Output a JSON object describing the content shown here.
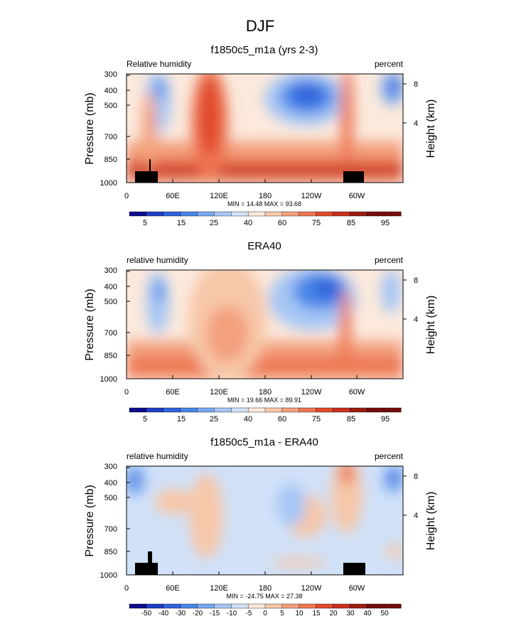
{
  "figure_title": "DJF",
  "chart_data": [
    {
      "type": "heatmap",
      "title": "f1850c5_m1a (yrs 2-3)",
      "left_label": "Relative humidity",
      "right_label": "percent",
      "ylabel": "Pressure (mb)",
      "y2label": "Height (km)",
      "pressure_ticks": [
        "300",
        "400",
        "500",
        "700",
        "850",
        "1000"
      ],
      "height_ticks": [
        "8",
        "4"
      ],
      "lon_ticks": [
        "0",
        "60E",
        "120E",
        "180",
        "120W",
        "60W"
      ],
      "stats": "MIN =  14.48   MAX =  93.68",
      "colorbar_labels": [
        "5",
        "15",
        "25",
        "40",
        "60",
        "75",
        "85",
        "95"
      ],
      "topography": true
    },
    {
      "type": "heatmap",
      "title": "ERA40",
      "left_label": "relative humidity",
      "right_label": "percent",
      "ylabel": "Pressure (mb)",
      "y2label": "Height (km)",
      "pressure_ticks": [
        "300",
        "400",
        "500",
        "700",
        "850",
        "1000"
      ],
      "height_ticks": [
        "8",
        "4"
      ],
      "lon_ticks": [
        "0",
        "60E",
        "120E",
        "180",
        "120W",
        "60W"
      ],
      "stats": "MIN =  19.66   MAX =  89.91",
      "colorbar_labels": [
        "5",
        "15",
        "25",
        "40",
        "60",
        "75",
        "85",
        "95"
      ],
      "topography": false
    },
    {
      "type": "heatmap",
      "title": "f1850c5_m1a - ERA40",
      "left_label": "relative humidity",
      "right_label": "percent",
      "ylabel": "Pressure (mb)",
      "y2label": "Height (km)",
      "pressure_ticks": [
        "300",
        "400",
        "500",
        "700",
        "850",
        "1000"
      ],
      "height_ticks": [
        "8",
        "4"
      ],
      "lon_ticks": [
        "0",
        "60E",
        "120E",
        "180",
        "120W",
        "60W"
      ],
      "stats": "MIN = -24.75   MAX =  27.38",
      "colorbar_labels": [
        "-50",
        "-40",
        "-30",
        "-20",
        "-15",
        "-10",
        "-5",
        "0",
        "5",
        "10",
        "15",
        "20",
        "30",
        "40",
        "50"
      ],
      "topography": true
    }
  ],
  "colors": {
    "ramp": [
      "#0c0c8c",
      "#1f3fc4",
      "#2f63dc",
      "#4a86e8",
      "#78a7f0",
      "#a6c6f5",
      "#d0e1f8",
      "#fbe9dc",
      "#f7c7a9",
      "#f3a07d",
      "#ee7653",
      "#e04a2c",
      "#c8301f",
      "#9a1d12",
      "#760c0c"
    ],
    "topo": "#000000"
  }
}
